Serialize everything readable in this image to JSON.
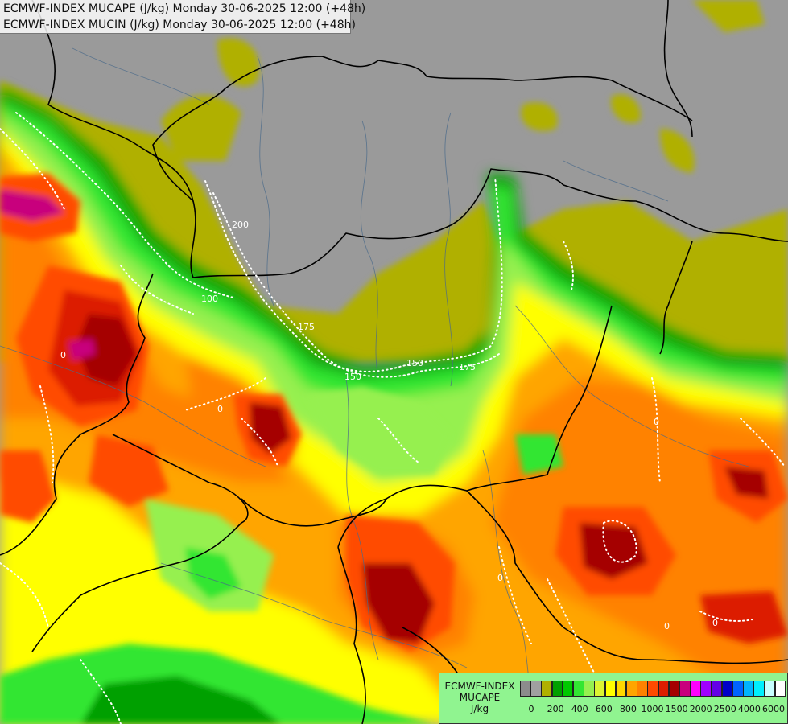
{
  "title": {
    "line1": "ECMWF-INDEX MUCAPE (J/kg) Monday 30-06-2025 12:00 (+48h)",
    "line2": "ECMWF-INDEX MUCIN (J/kg) Monday 30-06-2025 12:00 (+48h)"
  },
  "legend": {
    "title": "ECMWF-INDEX",
    "variable": "MUCAPE",
    "unit": "J/kg",
    "colors": [
      "#8c8c8c",
      "#a0a0a0",
      "#b0b000",
      "#00a000",
      "#00c800",
      "#32e632",
      "#96f050",
      "#dcf532",
      "#ffff00",
      "#ffd700",
      "#ffa500",
      "#ff8200",
      "#ff4b00",
      "#dc1e00",
      "#a50000",
      "#c8007d",
      "#ff00ff",
      "#a000ff",
      "#6400e6",
      "#0000c8",
      "#0064ff",
      "#00b4ff",
      "#00f0ff",
      "#c8ffff",
      "#ffffff"
    ],
    "tick_labels": [
      "0",
      "200",
      "400",
      "600",
      "800",
      "1000",
      "1500",
      "2000",
      "2500",
      "4000",
      "6000"
    ]
  },
  "mucin_labels": [
    "200",
    "100",
    "175",
    "150",
    "150",
    "175",
    "0",
    "0",
    "0",
    "0",
    "0",
    "0"
  ]
}
